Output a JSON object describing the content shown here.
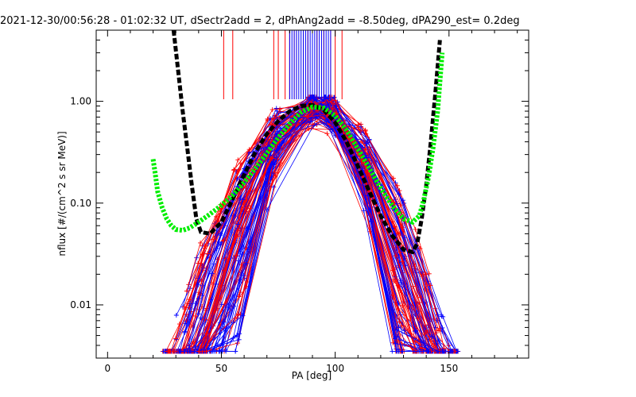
{
  "chart_data": {
    "type": "line",
    "title": "2021-12-30/00:56:28 - 01:02:32 UT, dSectr2add = 2, dPhAng2add = -8.50deg, dPA290_est=   0.2deg",
    "xlabel": "PA [deg]",
    "ylabel": "nflux [#/(cm^2 s sr MeV)]",
    "xlim": [
      -5,
      185
    ],
    "ylim": [
      0.003,
      5.0
    ],
    "yscale": "log",
    "xticks": [
      0,
      50,
      100,
      150
    ],
    "xtick_labels": [
      "0",
      "50",
      "100",
      "150"
    ],
    "yticks": [
      0.01,
      0.1,
      1.0
    ],
    "ytick_labels": [
      "0.01",
      "0.10",
      "1.00"
    ],
    "grid": false,
    "legend": "none",
    "colors": {
      "red": "#ff0000",
      "blue": "#0000ff",
      "black": "#000000",
      "green": "#00ee00"
    },
    "series": [
      {
        "color": "black",
        "style": "dashed-thick",
        "x": [
          29,
          31,
          33,
          35,
          37,
          39,
          41,
          45,
          50,
          55,
          60,
          65,
          70,
          75,
          80,
          85,
          90,
          95,
          100,
          105,
          110,
          115,
          120,
          125,
          130,
          134,
          136,
          138,
          140,
          142,
          144,
          146
        ],
        "y": [
          5.0,
          2.0,
          0.8,
          0.35,
          0.15,
          0.07,
          0.052,
          0.05,
          0.065,
          0.11,
          0.19,
          0.32,
          0.48,
          0.64,
          0.8,
          0.9,
          0.92,
          0.82,
          0.62,
          0.4,
          0.23,
          0.13,
          0.075,
          0.048,
          0.035,
          0.033,
          0.04,
          0.07,
          0.15,
          0.4,
          1.2,
          4.0
        ]
      },
      {
        "color": "green",
        "style": "dotted-thick",
        "x": [
          20,
          21,
          22,
          24,
          26,
          28,
          30,
          33,
          36,
          40,
          45,
          50,
          55,
          60,
          65,
          70,
          75,
          80,
          85,
          90,
          95,
          100,
          105,
          110,
          115,
          120,
          125,
          130,
          134,
          137,
          139,
          141,
          143,
          145,
          147
        ],
        "y": [
          0.27,
          0.19,
          0.13,
          0.09,
          0.07,
          0.06,
          0.055,
          0.054,
          0.057,
          0.065,
          0.078,
          0.095,
          0.12,
          0.16,
          0.22,
          0.31,
          0.44,
          0.6,
          0.78,
          0.88,
          0.86,
          0.72,
          0.52,
          0.34,
          0.22,
          0.14,
          0.095,
          0.07,
          0.065,
          0.075,
          0.11,
          0.18,
          0.35,
          0.8,
          3.0
        ]
      }
    ],
    "markers": [
      {
        "color": "red",
        "x": [
          51,
          55,
          73,
          75,
          78,
          80,
          82,
          83,
          86,
          88,
          90,
          92,
          95,
          98,
          100,
          103
        ]
      },
      {
        "color": "blue",
        "x": [
          80,
          81,
          82,
          83,
          84,
          85,
          86,
          87,
          88,
          89,
          90,
          91,
          92,
          93,
          94,
          95,
          96,
          97,
          98
        ]
      }
    ]
  }
}
